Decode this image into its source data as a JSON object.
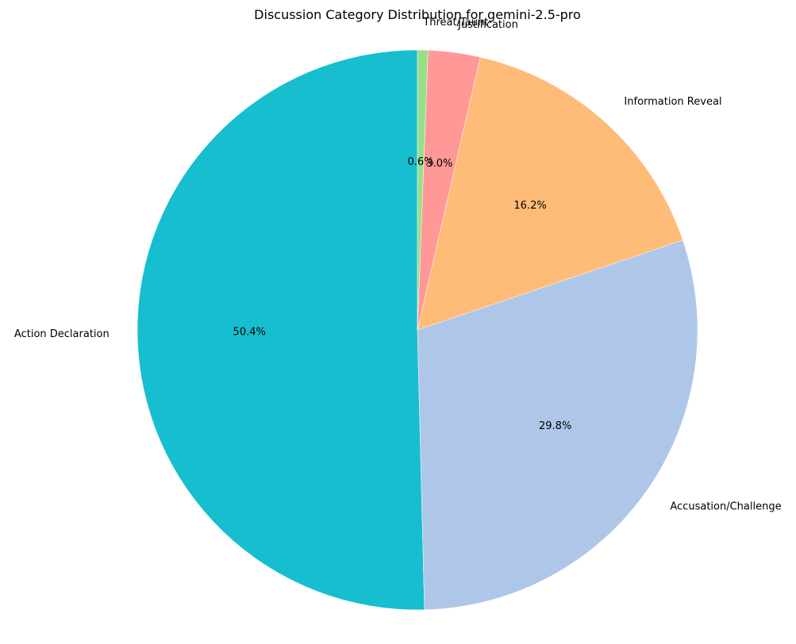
{
  "chart_data": {
    "type": "pie",
    "title": "Discussion Category Distribution for gemini-2.5-pro",
    "start_angle_deg": 90,
    "direction": "counterclockwise",
    "slices": [
      {
        "label": "Action Declaration",
        "value": 50.4,
        "pct_label": "50.4%",
        "color": "#17becf"
      },
      {
        "label": "Accusation/Challenge",
        "value": 29.8,
        "pct_label": "29.8%",
        "color": "#aec7e8"
      },
      {
        "label": "Information Reveal",
        "value": 16.2,
        "pct_label": "16.2%",
        "color": "#ffbb78"
      },
      {
        "label": "Justification",
        "value": 3.0,
        "pct_label": "3.0%",
        "color": "#ff9896"
      },
      {
        "label": "Threat/Taunt",
        "value": 0.6,
        "pct_label": "0.6%",
        "color": "#98df8a"
      }
    ]
  }
}
